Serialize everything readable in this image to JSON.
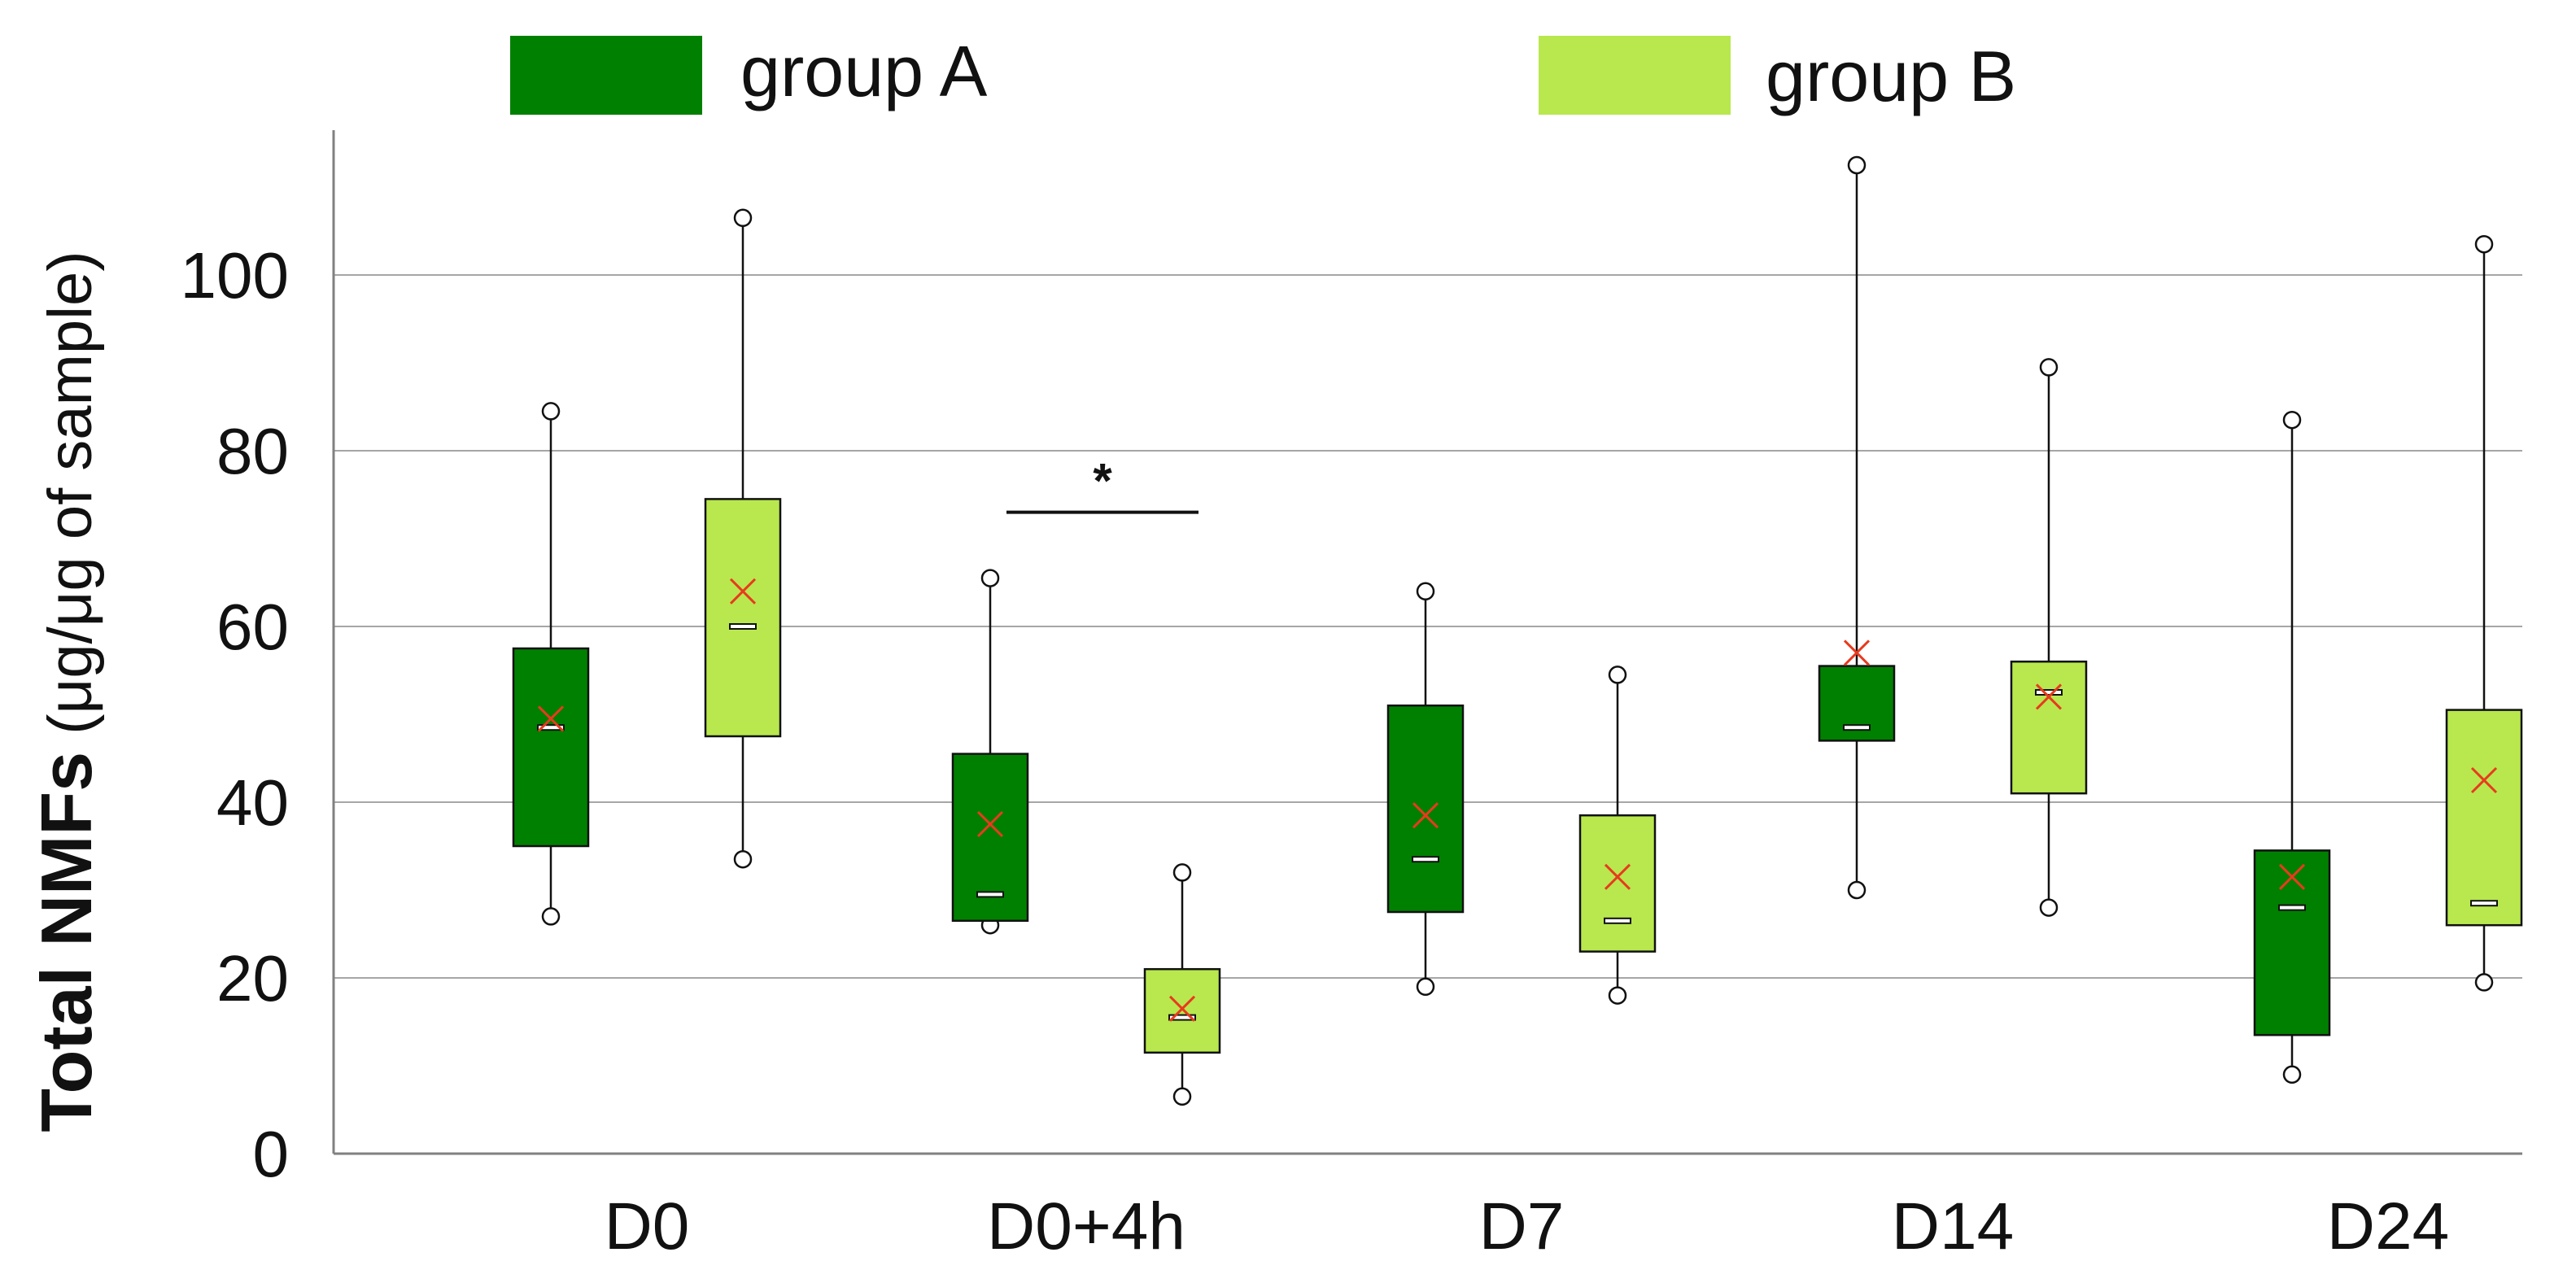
{
  "chart_data": {
    "type": "box",
    "ylabel_bold": "Total NMFs",
    "ylabel_rest": " (μg/μg of sample)",
    "xlabel": "",
    "ylim": [
      0,
      118
    ],
    "yticks": [
      0,
      20,
      40,
      60,
      80,
      100
    ],
    "grid": true,
    "legend_position": "top",
    "categories": [
      "D0",
      "D0+4h",
      "D7",
      "D14",
      "D24"
    ],
    "series": [
      {
        "name": "group A",
        "color": "#008000",
        "boxes": [
          {
            "min": 27,
            "q1": 35,
            "median": 48.5,
            "q3": 57.5,
            "max": 84.5,
            "mean": 49.5
          },
          {
            "min": 26,
            "q1": 26.5,
            "median": 29.5,
            "q3": 45.5,
            "max": 65.5,
            "mean": 37.5
          },
          {
            "min": 19,
            "q1": 27.5,
            "median": 33.5,
            "q3": 51,
            "max": 64,
            "mean": 38.5
          },
          {
            "min": 30,
            "q1": 47,
            "median": 48.5,
            "q3": 55.5,
            "max": 112.5,
            "mean": 57
          },
          {
            "min": 9,
            "q1": 13.5,
            "median": 28,
            "q3": 34.5,
            "max": 83.5,
            "mean": 31.5
          }
        ]
      },
      {
        "name": "group B",
        "color": "#b8e84e",
        "boxes": [
          {
            "min": 33.5,
            "q1": 47.5,
            "median": 60,
            "q3": 74.5,
            "max": 106.5,
            "mean": 64
          },
          {
            "min": 6.5,
            "q1": 11.5,
            "median": 15.5,
            "q3": 21,
            "max": 32,
            "mean": 16.5
          },
          {
            "min": 18,
            "q1": 23,
            "median": 26.5,
            "q3": 38.5,
            "max": 54.5,
            "mean": 31.5
          },
          {
            "min": 28,
            "q1": 41,
            "median": 52.5,
            "q3": 56,
            "max": 89.5,
            "mean": 52
          },
          {
            "min": 19.5,
            "q1": 26,
            "median": 28.5,
            "q3": 50.5,
            "max": 103.5,
            "mean": 42.5
          }
        ]
      }
    ],
    "annotations": [
      {
        "text": "*",
        "category": "D0+4h",
        "y": 73
      }
    ]
  },
  "colors": {
    "mean_marker": "#e83a1e",
    "grid": "#a6a6a6",
    "axis": "#808080"
  }
}
